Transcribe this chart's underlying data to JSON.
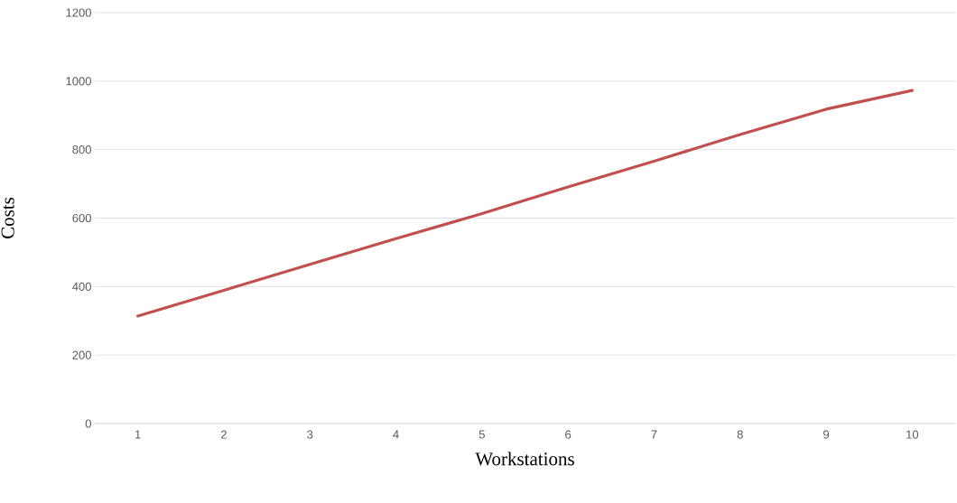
{
  "chart_data": {
    "type": "line",
    "xlabel": "Workstations",
    "ylabel": "Costs",
    "categories": [
      "1",
      "2",
      "3",
      "4",
      "5",
      "6",
      "7",
      "8",
      "9",
      "10"
    ],
    "series": [
      {
        "color": "#c0504d",
        "values": [
          314,
          389,
          465,
          540,
          613,
          691,
          766,
          844,
          918,
          973
        ]
      }
    ],
    "ylim": [
      0,
      1200
    ],
    "yticks": [
      0,
      200,
      400,
      600,
      800,
      1000,
      1200
    ],
    "grid": "y",
    "legend": false,
    "marker": "none",
    "line_style": "solid"
  }
}
